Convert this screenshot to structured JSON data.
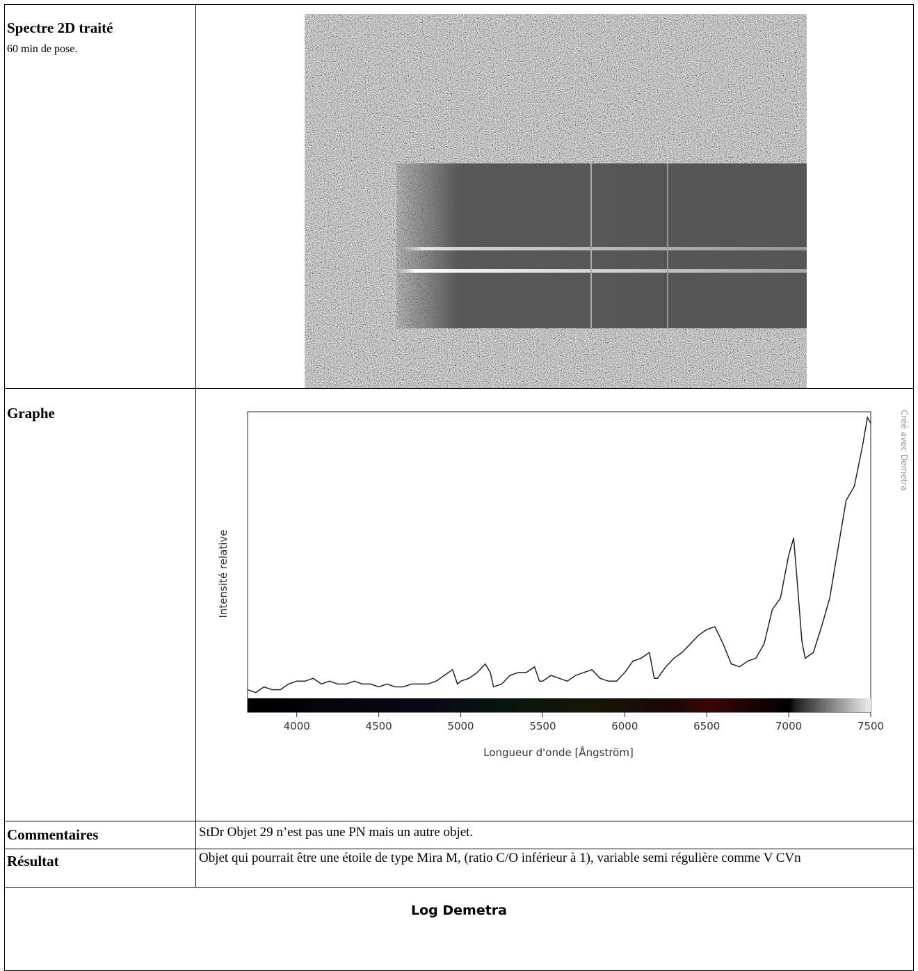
{
  "table": {
    "rows": [
      {
        "label": "Spectre 2D traité",
        "note": "60 min de pose."
      },
      {
        "label": "Graphe"
      },
      {
        "label": "Commentaires",
        "text": "StDr Objet 29 n’est pas une PN mais un autre objet."
      },
      {
        "label": "Résultat",
        "text": "Objet qui pourrait être une étoile de type Mira M, (ratio C/O inférieur à 1), variable semi régulière comme V CVn"
      }
    ],
    "footer": "Log Demetra"
  },
  "chart_data": {
    "type": "line",
    "xlabel": "Longueur d'onde [Ångström]",
    "ylabel": "Intensité relative",
    "watermark": "Créé avec Demetra",
    "xlim": [
      3700,
      7500
    ],
    "xticks": [
      4000,
      4500,
      5000,
      5500,
      6000,
      6500,
      7000,
      7500
    ],
    "ylim": [
      0,
      100
    ],
    "color": "#222222",
    "x": [
      3700,
      3750,
      3800,
      3850,
      3900,
      3950,
      4000,
      4050,
      4100,
      4150,
      4200,
      4250,
      4300,
      4350,
      4400,
      4450,
      4500,
      4550,
      4600,
      4650,
      4700,
      4750,
      4800,
      4850,
      4900,
      4950,
      4980,
      5000,
      5050,
      5100,
      5150,
      5180,
      5200,
      5250,
      5300,
      5350,
      5400,
      5450,
      5480,
      5500,
      5550,
      5600,
      5650,
      5700,
      5750,
      5800,
      5850,
      5900,
      5950,
      6000,
      6050,
      6100,
      6150,
      6180,
      6200,
      6250,
      6300,
      6350,
      6400,
      6450,
      6500,
      6550,
      6600,
      6650,
      6700,
      6750,
      6800,
      6850,
      6900,
      6950,
      7000,
      7030,
      7050,
      7080,
      7100,
      7150,
      7200,
      7250,
      7300,
      7350,
      7400,
      7450,
      7480,
      7500
    ],
    "values": [
      3,
      2,
      4,
      3,
      3,
      5,
      6,
      6,
      7,
      5,
      6,
      5,
      5,
      6,
      5,
      5,
      4,
      5,
      4,
      4,
      5,
      5,
      5,
      6,
      8,
      10,
      5,
      6,
      7,
      9,
      12,
      9,
      4,
      5,
      8,
      9,
      9,
      11,
      6,
      6,
      8,
      7,
      6,
      8,
      9,
      10,
      7,
      6,
      6,
      9,
      13,
      14,
      16,
      7,
      7,
      11,
      14,
      16,
      19,
      22,
      24,
      25,
      19,
      12,
      11,
      13,
      14,
      19,
      31,
      35,
      50,
      56,
      42,
      20,
      14,
      16,
      25,
      35,
      52,
      69,
      74,
      88,
      98,
      96
    ]
  }
}
